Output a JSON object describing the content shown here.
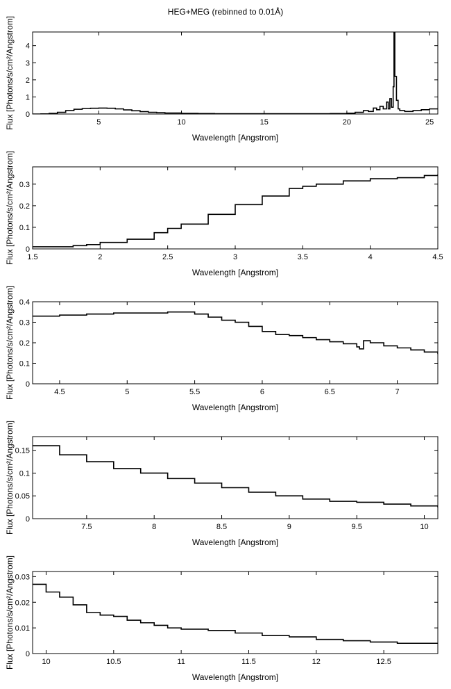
{
  "figure": {
    "title": "HEG+MEG (rebinned to 0.01Å)"
  },
  "chart_data": [
    {
      "type": "line",
      "title": "",
      "xlabel": "Wavelength [Angstrom]",
      "ylabel": "Flux [Photons/s/cm²/Angstrom]",
      "xlim": [
        1,
        25.5
      ],
      "ylim": [
        0,
        4.8
      ],
      "xticks": [
        5,
        10,
        15,
        20,
        25
      ],
      "xtick_labels": [
        "5",
        "10",
        "15",
        "20",
        "25"
      ],
      "yticks": [
        0,
        1,
        2,
        3,
        4
      ],
      "ytick_labels": [
        "0",
        "1",
        "2",
        "3",
        "4"
      ],
      "series": [
        {
          "values": [
            [
              1.0,
              0.0
            ],
            [
              1.5,
              0.01
            ],
            [
              2.0,
              0.04
            ],
            [
              2.5,
              0.1
            ],
            [
              3.0,
              0.2
            ],
            [
              3.5,
              0.28
            ],
            [
              4.0,
              0.32
            ],
            [
              4.5,
              0.34
            ],
            [
              5.0,
              0.35
            ],
            [
              5.5,
              0.34
            ],
            [
              6.0,
              0.3
            ],
            [
              6.5,
              0.24
            ],
            [
              7.0,
              0.19
            ],
            [
              7.5,
              0.14
            ],
            [
              8.0,
              0.1
            ],
            [
              8.5,
              0.08
            ],
            [
              9.0,
              0.06
            ],
            [
              10.0,
              0.04
            ],
            [
              11.0,
              0.03
            ],
            [
              12.0,
              0.02
            ],
            [
              13.0,
              0.02
            ],
            [
              15.0,
              0.02
            ],
            [
              17.0,
              0.02
            ],
            [
              19.0,
              0.03
            ],
            [
              20.0,
              0.05
            ],
            [
              20.5,
              0.1
            ],
            [
              21.0,
              0.2
            ],
            [
              21.3,
              0.15
            ],
            [
              21.6,
              0.35
            ],
            [
              21.8,
              0.25
            ],
            [
              22.0,
              0.45
            ],
            [
              22.2,
              0.3
            ],
            [
              22.4,
              0.7
            ],
            [
              22.5,
              0.3
            ],
            [
              22.6,
              0.9
            ],
            [
              22.7,
              0.4
            ],
            [
              22.8,
              1.6
            ],
            [
              22.85,
              4.8
            ],
            [
              22.9,
              2.2
            ],
            [
              23.0,
              0.8
            ],
            [
              23.1,
              0.3
            ],
            [
              23.2,
              0.2
            ],
            [
              23.5,
              0.15
            ],
            [
              24.0,
              0.2
            ],
            [
              24.5,
              0.25
            ],
            [
              25.0,
              0.3
            ],
            [
              25.5,
              0.3
            ]
          ]
        }
      ]
    },
    {
      "type": "line",
      "title": "",
      "xlabel": "Wavelength [Angstrom]",
      "ylabel": "Flux [Photons/s/cm²/Angstrom]",
      "xlim": [
        1.5,
        4.5
      ],
      "ylim": [
        0,
        0.38
      ],
      "xticks": [
        1.5,
        2,
        2.5,
        3,
        3.5,
        4,
        4.5
      ],
      "xtick_labels": [
        "1.5",
        "2",
        "2.5",
        "3",
        "3.5",
        "4",
        "4.5"
      ],
      "yticks": [
        0,
        0.1,
        0.2,
        0.3
      ],
      "ytick_labels": [
        "0",
        "0.1",
        "0.2",
        "0.3"
      ],
      "series": [
        {
          "values": [
            [
              1.5,
              0.01
            ],
            [
              1.6,
              0.01
            ],
            [
              1.7,
              0.01
            ],
            [
              1.8,
              0.015
            ],
            [
              1.9,
              0.02
            ],
            [
              2.0,
              0.03
            ],
            [
              2.2,
              0.045
            ],
            [
              2.4,
              0.075
            ],
            [
              2.5,
              0.095
            ],
            [
              2.6,
              0.115
            ],
            [
              2.8,
              0.16
            ],
            [
              3.0,
              0.205
            ],
            [
              3.2,
              0.245
            ],
            [
              3.4,
              0.28
            ],
            [
              3.5,
              0.29
            ],
            [
              3.6,
              0.3
            ],
            [
              3.8,
              0.315
            ],
            [
              4.0,
              0.325
            ],
            [
              4.2,
              0.33
            ],
            [
              4.4,
              0.34
            ],
            [
              4.5,
              0.345
            ]
          ]
        }
      ]
    },
    {
      "type": "line",
      "title": "",
      "xlabel": "Wavelength [Angstrom]",
      "ylabel": "Flux [Photons/s/cm²/Angstrom]",
      "xlim": [
        4.3,
        7.3
      ],
      "ylim": [
        0,
        0.4
      ],
      "xticks": [
        4.5,
        5,
        5.5,
        6,
        6.5,
        7
      ],
      "xtick_labels": [
        "4.5",
        "5",
        "5.5",
        "6",
        "6.5",
        "7"
      ],
      "yticks": [
        0,
        0.1,
        0.2,
        0.3,
        0.4
      ],
      "ytick_labels": [
        "0",
        "0.1",
        "0.2",
        "0.3",
        "0.4"
      ],
      "series": [
        {
          "values": [
            [
              4.3,
              0.33
            ],
            [
              4.5,
              0.335
            ],
            [
              4.7,
              0.34
            ],
            [
              4.9,
              0.345
            ],
            [
              5.1,
              0.345
            ],
            [
              5.3,
              0.35
            ],
            [
              5.5,
              0.34
            ],
            [
              5.6,
              0.325
            ],
            [
              5.7,
              0.31
            ],
            [
              5.8,
              0.3
            ],
            [
              5.9,
              0.28
            ],
            [
              6.0,
              0.255
            ],
            [
              6.1,
              0.24
            ],
            [
              6.2,
              0.235
            ],
            [
              6.3,
              0.225
            ],
            [
              6.4,
              0.215
            ],
            [
              6.5,
              0.205
            ],
            [
              6.6,
              0.195
            ],
            [
              6.7,
              0.18
            ],
            [
              6.72,
              0.17
            ],
            [
              6.75,
              0.21
            ],
            [
              6.8,
              0.2
            ],
            [
              6.9,
              0.185
            ],
            [
              7.0,
              0.175
            ],
            [
              7.1,
              0.165
            ],
            [
              7.2,
              0.155
            ],
            [
              7.3,
              0.145
            ]
          ]
        }
      ]
    },
    {
      "type": "line",
      "title": "",
      "xlabel": "Wavelength [Angstrom]",
      "ylabel": "Flux [Photons/s/cm²/Angstrom]",
      "xlim": [
        7.1,
        10.1
      ],
      "ylim": [
        0,
        0.18
      ],
      "xticks": [
        7.5,
        8,
        8.5,
        9,
        9.5,
        10
      ],
      "xtick_labels": [
        "7.5",
        "8",
        "8.5",
        "9",
        "9.5",
        "10"
      ],
      "yticks": [
        0,
        0.05,
        0.1,
        0.15
      ],
      "ytick_labels": [
        "0",
        "0.05",
        "0.1",
        "0.15"
      ],
      "series": [
        {
          "values": [
            [
              7.1,
              0.16
            ],
            [
              7.3,
              0.14
            ],
            [
              7.5,
              0.125
            ],
            [
              7.7,
              0.11
            ],
            [
              7.9,
              0.1
            ],
            [
              8.1,
              0.088
            ],
            [
              8.3,
              0.078
            ],
            [
              8.5,
              0.068
            ],
            [
              8.7,
              0.058
            ],
            [
              8.9,
              0.05
            ],
            [
              9.1,
              0.043
            ],
            [
              9.3,
              0.038
            ],
            [
              9.5,
              0.036
            ],
            [
              9.7,
              0.032
            ],
            [
              9.9,
              0.028
            ],
            [
              10.1,
              0.025
            ]
          ]
        }
      ]
    },
    {
      "type": "line",
      "title": "",
      "xlabel": "Wavelength [Angstrom]",
      "ylabel": "Flux [Photons/s/cm²/Angstrom]",
      "xlim": [
        9.9,
        12.9
      ],
      "ylim": [
        0,
        0.032
      ],
      "xticks": [
        10,
        10.5,
        11,
        11.5,
        12,
        12.5
      ],
      "xtick_labels": [
        "10",
        "10.5",
        "11",
        "11.5",
        "12",
        "12.5"
      ],
      "yticks": [
        0,
        0.01,
        0.02,
        0.03
      ],
      "ytick_labels": [
        "0",
        "0.01",
        "0.02",
        "0.03"
      ],
      "series": [
        {
          "values": [
            [
              9.9,
              0.027
            ],
            [
              10.0,
              0.024
            ],
            [
              10.1,
              0.022
            ],
            [
              10.2,
              0.019
            ],
            [
              10.3,
              0.016
            ],
            [
              10.4,
              0.015
            ],
            [
              10.5,
              0.0145
            ],
            [
              10.6,
              0.013
            ],
            [
              10.7,
              0.012
            ],
            [
              10.8,
              0.011
            ],
            [
              10.9,
              0.01
            ],
            [
              11.0,
              0.0095
            ],
            [
              11.2,
              0.009
            ],
            [
              11.4,
              0.008
            ],
            [
              11.6,
              0.007
            ],
            [
              11.8,
              0.0065
            ],
            [
              12.0,
              0.0055
            ],
            [
              12.2,
              0.005
            ],
            [
              12.4,
              0.0045
            ],
            [
              12.6,
              0.004
            ],
            [
              12.8,
              0.004
            ],
            [
              12.9,
              0.004
            ]
          ]
        }
      ]
    }
  ]
}
